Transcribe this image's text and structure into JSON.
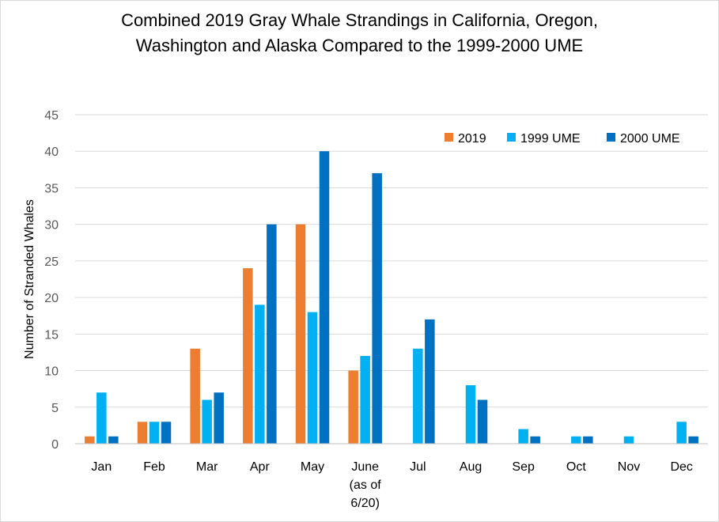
{
  "chart_data": {
    "type": "bar",
    "title_lines": [
      "Combined 2019 Gray Whale Strandings in California, Oregon,",
      "Washington and Alaska Compared to the 1999-2000 UME"
    ],
    "title": "Combined 2019 Gray Whale Strandings in California, Oregon, Washington and Alaska Compared to the 1999-2000 UME",
    "xlabel": "",
    "ylabel": "Number of Stranded Whales",
    "ylim": [
      0,
      45
    ],
    "yticks": [
      0,
      5,
      10,
      15,
      20,
      25,
      30,
      35,
      40,
      45
    ],
    "grid": true,
    "legend_position": "top-right",
    "categories": [
      [
        "Jan"
      ],
      [
        "Feb"
      ],
      [
        "Mar"
      ],
      [
        "Apr"
      ],
      [
        "May"
      ],
      [
        "June",
        "(as of",
        "6/20)"
      ],
      [
        "Jul"
      ],
      [
        "Aug"
      ],
      [
        "Sep"
      ],
      [
        "Oct"
      ],
      [
        "Nov"
      ],
      [
        "Dec"
      ]
    ],
    "series": [
      {
        "name": "2019",
        "color": "#ED7D31",
        "values": [
          1,
          3,
          13,
          24,
          30,
          10,
          null,
          null,
          null,
          null,
          null,
          null
        ]
      },
      {
        "name": "1999 UME",
        "color": "#00B0F0",
        "values": [
          7,
          3,
          6,
          19,
          18,
          12,
          13,
          8,
          2,
          1,
          1,
          3
        ]
      },
      {
        "name": "2000 UME",
        "color": "#0070C0",
        "values": [
          1,
          3,
          7,
          30,
          40,
          37,
          17,
          6,
          1,
          1,
          0,
          1
        ]
      }
    ]
  }
}
